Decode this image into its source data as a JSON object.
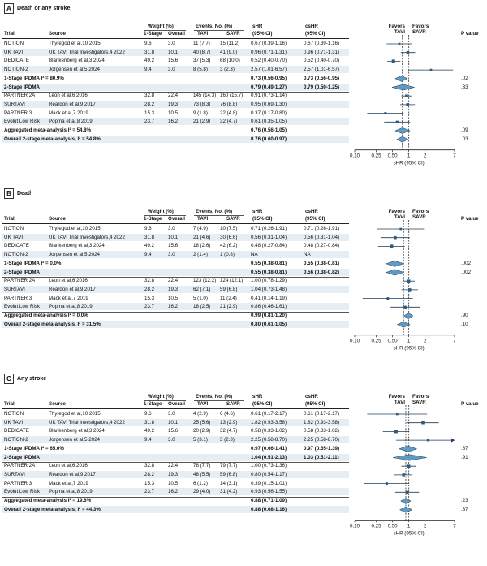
{
  "columns": {
    "trial": "Trial",
    "source": "Source",
    "weight": "Weight (%)",
    "weight_1stage": "1-Stage",
    "weight_overall": "Overall",
    "events": "Events, No. (%)",
    "events_tavi": "TAVI",
    "events_savr": "SAVR",
    "shr": "sHR",
    "shr_ci": "(95% CI)",
    "cshr": "csHR",
    "cshr_ci": "(95% CI)",
    "favors_tavi": "Favors TAVI",
    "favors_savr": "Favors SAVR",
    "pvalue": "P value"
  },
  "chart_data": [
    {
      "type": "forest",
      "letter": "A",
      "title": "Death or any stroke",
      "xlabel": "sHR (95% CI)",
      "xscale": "log",
      "xlim": [
        0.1,
        7
      ],
      "xticks": [
        "0.10",
        "0.25",
        "0.50",
        "1",
        "2",
        "7"
      ],
      "reference_lines": [
        1.0,
        0.76
      ],
      "rows": [
        {
          "kind": "study",
          "trial": "NOTION",
          "source": "Thyregod et al,10 2015",
          "w1": "9.6",
          "w2": "3.0",
          "tavi": "11 (7.7)",
          "savr": "15 (11.2)",
          "shr_text": "0.67 (0.39-1.16)",
          "cshr_text": "0.67 (0.39-1.16)",
          "p": "",
          "est": 0.67,
          "lo": 0.39,
          "hi": 1.16
        },
        {
          "kind": "study",
          "trial": "UK TAVI",
          "source": "UK TAVI Trial Investigators,4 2022",
          "w1": "31.8",
          "w2": "10.1",
          "tavi": "40 (8.7)",
          "savr": "41 (9.0)",
          "shr_text": "0.96 (0.71-1.31)",
          "cshr_text": "0.96 (0.71-1.31)",
          "p": "",
          "est": 0.96,
          "lo": 0.71,
          "hi": 1.31
        },
        {
          "kind": "study",
          "trial": "DEDICATE",
          "source": "Blankenberg et al,3 2024",
          "w1": "49.2",
          "w2": "15.6",
          "tavi": "37 (5.3)",
          "savr": "68 (10.0)",
          "shr_text": "0.52 (0.40-0.70)",
          "cshr_text": "0.52 (0.40-0.70)",
          "p": "",
          "est": 0.52,
          "lo": 0.4,
          "hi": 0.7
        },
        {
          "kind": "study",
          "trial": "NOTION-2",
          "source": "Jorgensen et al,5 2024",
          "w1": "9.4",
          "w2": "3.0",
          "tavi": "8 (5.8)",
          "savr": "3 (2.3)",
          "shr_text": "2.57 (1.01-6.57)",
          "cshr_text": "2.57 (1.01-6.57)",
          "p": "",
          "est": 2.57,
          "lo": 1.01,
          "hi": 6.57
        },
        {
          "kind": "pooled",
          "trial": "1-Stage IPDMA I² = 80.9%",
          "shr_text": "0.73 (0.56-0.95)",
          "cshr_text": "0.73 (0.56-0.95)",
          "p": ".02",
          "est": 0.73,
          "lo": 0.56,
          "hi": 0.95
        },
        {
          "kind": "pooled",
          "trial": "2-Stage IPDMA",
          "shr_text": "0.79 (0.49-1.27)",
          "cshr_text": "0.79 (0.50-1.25)",
          "p": ".33",
          "est": 0.79,
          "lo": 0.49,
          "hi": 1.27
        },
        {
          "kind": "study",
          "trial": "PARTNER 2A",
          "source": "Leon et al,6 2016",
          "w1": "32.8",
          "w2": "22.4",
          "tavi": "145 (14.3)",
          "savr": "160 (15.7)",
          "shr_text": "0.91 (0.73-1.14)",
          "cshr_text": "",
          "p": "",
          "est": 0.91,
          "lo": 0.73,
          "hi": 1.14
        },
        {
          "kind": "study",
          "trial": "SURTAVI",
          "source": "Reardon et al,9 2017",
          "w1": "28.2",
          "w2": "19.3",
          "tavi": "73 (8.3)",
          "savr": "76 (8.8)",
          "shr_text": "0.95 (0.69-1.30)",
          "cshr_text": "",
          "p": "",
          "est": 0.95,
          "lo": 0.69,
          "hi": 1.3
        },
        {
          "kind": "study",
          "trial": "PARTNER 3",
          "source": "Mack et al,7 2019",
          "w1": "15.3",
          "w2": "10.5",
          "tavi": "9 (1.8)",
          "savr": "22 (4.8)",
          "shr_text": "0.37 (0.17-0.80)",
          "cshr_text": "",
          "p": "",
          "est": 0.37,
          "lo": 0.17,
          "hi": 0.8
        },
        {
          "kind": "study",
          "trial": "Evolut Low Risk",
          "source": "Popma et al,8 2019",
          "w1": "23.7",
          "w2": "16.2",
          "tavi": "21 (2.9)",
          "savr": "32 (4.7)",
          "shr_text": "0.61 (0.35-1.05)",
          "cshr_text": "",
          "p": "",
          "est": 0.61,
          "lo": 0.35,
          "hi": 1.05
        },
        {
          "kind": "pooled",
          "trial": "Aggregated meta-analysis I² = 54.8%",
          "shr_text": "0.76 (0.56-1.05)",
          "cshr_text": "",
          "p": ".09",
          "est": 0.76,
          "lo": 0.56,
          "hi": 1.05
        },
        {
          "kind": "pooled",
          "trial": "Overall 2-stage meta-analysis, I² = 54.8%",
          "shr_text": "0.76 (0.60-0.97)",
          "cshr_text": "",
          "p": ".03",
          "est": 0.76,
          "lo": 0.6,
          "hi": 0.97
        }
      ]
    },
    {
      "type": "forest",
      "letter": "B",
      "title": "Death",
      "xlabel": "sHR (95% CI)",
      "xscale": "log",
      "xlim": [
        0.1,
        7
      ],
      "xticks": [
        "0.10",
        "0.25",
        "0.50",
        "1",
        "2",
        "7"
      ],
      "reference_lines": [
        1.0,
        0.8
      ],
      "rows": [
        {
          "kind": "study",
          "trial": "NOTION",
          "source": "Thyregod et al,10 2015",
          "w1": "9.6",
          "w2": "3.0",
          "tavi": "7 (4.9)",
          "savr": "10 (7.5)",
          "shr_text": "0.71 (0.26-1.91)",
          "cshr_text": "0.71 (0.26-1.91)",
          "p": "",
          "est": 0.71,
          "lo": 0.26,
          "hi": 1.91
        },
        {
          "kind": "study",
          "trial": "UK TAVI",
          "source": "UK TAVI Trial Investigators,4 2022",
          "w1": "31.8",
          "w2": "10.1",
          "tavi": "21 (4.6)",
          "savr": "30 (6.6)",
          "shr_text": "0.56 (0.31-1.04)",
          "cshr_text": "0.56 (0.31-1.04)",
          "p": "",
          "est": 0.56,
          "lo": 0.31,
          "hi": 1.04
        },
        {
          "kind": "study",
          "trial": "DEDICATE",
          "source": "Blankenberg et al,3 2024",
          "w1": "49.2",
          "w2": "15.6",
          "tavi": "18 (2.6)",
          "savr": "42 (6.2)",
          "shr_text": "0.48 (0.27-0.84)",
          "cshr_text": "0.48 (0.27-0.84)",
          "p": "",
          "est": 0.48,
          "lo": 0.27,
          "hi": 0.84
        },
        {
          "kind": "study",
          "trial": "NOTION-2",
          "source": "Jorgensen et al,5 2024",
          "w1": "9.4",
          "w2": "3.0",
          "tavi": "2 (1.4)",
          "savr": "1 (0.8)",
          "shr_text": "NA",
          "cshr_text": "NA",
          "p": "",
          "est": null,
          "lo": null,
          "hi": null
        },
        {
          "kind": "pooled",
          "trial": "1-Stage IPDMA I² = 0.0%",
          "shr_text": "0.55 (0.38-0.81)",
          "cshr_text": "0.55 (0.38-0.81)",
          "p": ".002",
          "est": 0.55,
          "lo": 0.38,
          "hi": 0.81
        },
        {
          "kind": "pooled",
          "trial": "2-Stage IPDMA",
          "shr_text": "0.55 (0.38-0.81)",
          "cshr_text": "0.56 (0.38-0.82)",
          "p": ".002",
          "est": 0.55,
          "lo": 0.38,
          "hi": 0.81
        },
        {
          "kind": "study",
          "trial": "PARTNER 2A",
          "source": "Leon et al,6 2016",
          "w1": "32.8",
          "w2": "22.4",
          "tavi": "123 (12.2)",
          "savr": "124 (12.1)",
          "shr_text": "1.00 (0.78-1.29)",
          "cshr_text": "",
          "p": "",
          "est": 1.0,
          "lo": 0.78,
          "hi": 1.29
        },
        {
          "kind": "study",
          "trial": "SURTAVI",
          "source": "Reardon et al,9 2017",
          "w1": "28.2",
          "w2": "19.3",
          "tavi": "62 (7.1)",
          "savr": "59 (6.8)",
          "shr_text": "1.04 (0.73-1.48)",
          "cshr_text": "",
          "p": "",
          "est": 1.04,
          "lo": 0.73,
          "hi": 1.48
        },
        {
          "kind": "study",
          "trial": "PARTNER 3",
          "source": "Mack et al,7 2019",
          "w1": "15.3",
          "w2": "10.5",
          "tavi": "5 (1.0)",
          "savr": "11 (2.4)",
          "shr_text": "0.41 (0.14-1.19)",
          "cshr_text": "",
          "p": "",
          "est": 0.41,
          "lo": 0.14,
          "hi": 1.19
        },
        {
          "kind": "study",
          "trial": "Evolut Low Risk",
          "source": "Popma et al,8 2019",
          "w1": "23.7",
          "w2": "16.2",
          "tavi": "18 (2.5)",
          "savr": "21 (2.9)",
          "shr_text": "0.86 (0.46-1.61)",
          "cshr_text": "",
          "p": "",
          "est": 0.86,
          "lo": 0.46,
          "hi": 1.61
        },
        {
          "kind": "pooled",
          "trial": "Aggregated meta-analysis I² = 0.0%",
          "shr_text": "0.99 (0.81-1.20)",
          "cshr_text": "",
          "p": ".90",
          "est": 0.99,
          "lo": 0.81,
          "hi": 1.2
        },
        {
          "kind": "pooled",
          "trial": "Overall 2-stage meta-analysis, I² = 31.5%",
          "shr_text": "0.80 (0.61-1.05)",
          "cshr_text": "",
          "p": ".10",
          "est": 0.8,
          "lo": 0.61,
          "hi": 1.05
        }
      ]
    },
    {
      "type": "forest",
      "letter": "C",
      "title": "Any stroke",
      "xlabel": "sHR (95% CI)",
      "xscale": "log",
      "xlim": [
        0.1,
        7
      ],
      "xticks": [
        "0.10",
        "0.25",
        "0.50",
        "1",
        "2",
        "7"
      ],
      "reference_lines": [
        1.0,
        0.88
      ],
      "rows": [
        {
          "kind": "study",
          "trial": "NOTION",
          "source": "Thyregod et al,10 2015",
          "w1": "9.6",
          "w2": "3.0",
          "tavi": "4 (2.9)",
          "savr": "6 (4.6)",
          "shr_text": "0.61 (0.17-2.17)",
          "cshr_text": "0.61 (0.17-2.17)",
          "p": "",
          "est": 0.61,
          "lo": 0.17,
          "hi": 2.17
        },
        {
          "kind": "study",
          "trial": "UK TAVI",
          "source": "UK TAVI Trial Investigators,4 2022",
          "w1": "31.8",
          "w2": "10.1",
          "tavi": "25 (5.6)",
          "savr": "13 (2.9)",
          "shr_text": "1.82 (0.93-3.58)",
          "cshr_text": "1.82 (0.93-3.58)",
          "p": "",
          "est": 1.82,
          "lo": 0.93,
          "hi": 3.58
        },
        {
          "kind": "study",
          "trial": "DEDICATE",
          "source": "Blankenberg et al,3 2024",
          "w1": "49.2",
          "w2": "15.6",
          "tavi": "20 (2.9)",
          "savr": "32 (4.7)",
          "shr_text": "0.58 (0.33-1.02)",
          "cshr_text": "0.58 (0.33-1.02)",
          "p": "",
          "est": 0.58,
          "lo": 0.33,
          "hi": 1.02
        },
        {
          "kind": "study",
          "trial": "NOTION-2",
          "source": "Jorgensen et al,5 2024",
          "w1": "9.4",
          "w2": "3.0",
          "tavi": "5 (3.1)",
          "savr": "3 (2.3)",
          "shr_text": "2.25 (0.58-8.70)",
          "cshr_text": "2.25 (0.58-8.70)",
          "p": "",
          "est": 2.25,
          "lo": 0.58,
          "hi": 8.7
        },
        {
          "kind": "pooled",
          "trial": "1-Stage IPDMA I² = 65.0%",
          "shr_text": "0.97 (0.66-1.41)",
          "cshr_text": "0.97 (0.65-1.39)",
          "p": ".87",
          "est": 0.97,
          "lo": 0.66,
          "hi": 1.41
        },
        {
          "kind": "pooled",
          "trial": "2-Stage IPDMA",
          "shr_text": "1.04 (0.51-2.13)",
          "cshr_text": "1.03 (0.51-2.11)",
          "p": ".91",
          "est": 1.04,
          "lo": 0.51,
          "hi": 2.13
        },
        {
          "kind": "study",
          "trial": "PARTNER 2A",
          "source": "Leon et al,6 2016",
          "w1": "32.8",
          "w2": "22.4",
          "tavi": "78 (7.7)",
          "savr": "79 (7.7)",
          "shr_text": "1.00 (0.73-1.36)",
          "cshr_text": "",
          "p": "",
          "est": 1.0,
          "lo": 0.73,
          "hi": 1.36
        },
        {
          "kind": "study",
          "trial": "SURTAVI",
          "source": "Reardon et al,9 2017",
          "w1": "28.2",
          "w2": "19.3",
          "tavi": "48 (5.5)",
          "savr": "59 (6.8)",
          "shr_text": "0.80 (0.54-1.17)",
          "cshr_text": "",
          "p": "",
          "est": 0.8,
          "lo": 0.54,
          "hi": 1.17
        },
        {
          "kind": "study",
          "trial": "PARTNER 3",
          "source": "Mack et al,7 2019",
          "w1": "15.3",
          "w2": "10.5",
          "tavi": "6 (1.2)",
          "savr": "14 (3.1)",
          "shr_text": "0.39 (0.15-1.01)",
          "cshr_text": "",
          "p": "",
          "est": 0.39,
          "lo": 0.15,
          "hi": 1.01
        },
        {
          "kind": "study",
          "trial": "Evolut Low Risk",
          "source": "Popma et al,8 2019",
          "w1": "23.7",
          "w2": "16.2",
          "tavi": "29 (4.0)",
          "savr": "31 (4.2)",
          "shr_text": "0.93 (0.56-1.55)",
          "cshr_text": "",
          "p": "",
          "est": 0.93,
          "lo": 0.56,
          "hi": 1.55
        },
        {
          "kind": "pooled",
          "trial": "Aggregated meta-analysis I² = 19.6%",
          "shr_text": "0.88 (0.71-1.09)",
          "cshr_text": "",
          "p": ".23",
          "est": 0.88,
          "lo": 0.71,
          "hi": 1.09
        },
        {
          "kind": "pooled",
          "trial": "Overall 2-stage meta-analysis, I² = 44.3%",
          "shr_text": "0.88 (0.68-1.16)",
          "cshr_text": "",
          "p": ".37",
          "est": 0.88,
          "lo": 0.68,
          "hi": 1.16
        }
      ]
    }
  ]
}
